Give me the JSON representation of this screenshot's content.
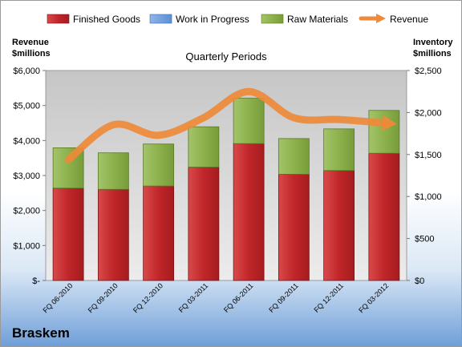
{
  "chart_data": {
    "type": "bar",
    "stacked": true,
    "title": "Quarterly Periods",
    "categories": [
      "FQ 06-2010",
      "FQ 09-2010",
      "FQ 12-2010",
      "FQ 03-2011",
      "FQ 06-2011",
      "FQ 09-2011",
      "FQ 12-2011",
      "FQ 03-2012"
    ],
    "series": [
      {
        "name": "Finished Goods",
        "axis": "inventory",
        "color": "#c0262a",
        "values": [
          1100,
          1085,
          1125,
          1350,
          1630,
          1265,
          1310,
          1515
        ]
      },
      {
        "name": "Work in Progress",
        "axis": "inventory",
        "color": "#5b8fd6",
        "values": [
          0,
          0,
          0,
          0,
          0,
          0,
          0,
          0
        ]
      },
      {
        "name": "Raw Materials",
        "axis": "inventory",
        "color": "#8db14c",
        "values": [
          480,
          435,
          500,
          480,
          540,
          425,
          495,
          510
        ]
      },
      {
        "name": "Revenue",
        "axis": "revenue",
        "type": "line",
        "color": "#ee8a3a",
        "values": [
          3450,
          4450,
          4150,
          4650,
          5400,
          4650,
          4600,
          4500
        ]
      }
    ],
    "y_left": {
      "label_line1": "Revenue",
      "label_line2": "$millions",
      "ylim": [
        0,
        6000
      ],
      "ticks": [
        "$-",
        "$1,000",
        "$2,000",
        "$3,000",
        "$4,000",
        "$5,000",
        "$6,000"
      ]
    },
    "y_right": {
      "label_line1": "Inventory",
      "label_line2": "$millions",
      "ylim": [
        0,
        2500
      ],
      "ticks": [
        "$0",
        "$500",
        "$1,000",
        "$1,500",
        "$2,000",
        "$2,500"
      ]
    },
    "grid": false,
    "legend": "top"
  },
  "company": "Braskem"
}
